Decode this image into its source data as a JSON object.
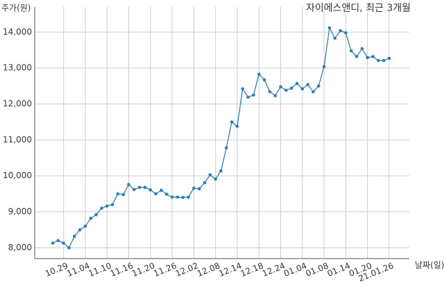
{
  "chart_data": {
    "type": "line",
    "title": "자이에스앤디, 최근 3개월",
    "y_label": "주가(원)",
    "x_label": "날짜(일)",
    "categories": [
      null,
      null,
      "10.29",
      null,
      null,
      null,
      "11.04",
      null,
      null,
      null,
      "11.10",
      null,
      null,
      null,
      "11.16",
      null,
      null,
      null,
      "11.20",
      null,
      null,
      null,
      "11.26",
      null,
      null,
      null,
      "12.02",
      null,
      null,
      null,
      "12.08",
      null,
      null,
      null,
      "12.14",
      null,
      null,
      null,
      "12.18",
      null,
      null,
      null,
      "12.24",
      null,
      null,
      null,
      "01.04",
      null,
      null,
      null,
      "01.08",
      null,
      null,
      null,
      "01.14",
      null,
      null,
      null,
      "01.20",
      null,
      null,
      null,
      "21.01.26"
    ],
    "series": [
      {
        "name": "주가",
        "color": "#2e7fb0",
        "values": [
          8130,
          8200,
          8130,
          8000,
          8320,
          8500,
          8600,
          8820,
          8920,
          9100,
          9160,
          9200,
          9500,
          9480,
          9760,
          9620,
          9680,
          9680,
          9610,
          9500,
          9600,
          9490,
          9410,
          9410,
          9400,
          9410,
          9660,
          9640,
          9810,
          10030,
          9910,
          10140,
          10780,
          11500,
          11380,
          12420,
          12190,
          12250,
          12830,
          12670,
          12340,
          12230,
          12480,
          12380,
          12440,
          12570,
          12420,
          12540,
          12340,
          12500,
          13040,
          14120,
          13830,
          14040,
          13980,
          13480,
          13320,
          13540,
          13290,
          13320,
          13210,
          13210,
          13270
        ]
      }
    ],
    "ylim": [
      7700,
      14700
    ],
    "yticks": [
      {
        "value": 8000,
        "label": "8,000"
      },
      {
        "value": 9000,
        "label": "9,000"
      },
      {
        "value": 10000,
        "label": "10,000"
      },
      {
        "value": 11000,
        "label": "11,000"
      },
      {
        "value": 12000,
        "label": "12,000"
      },
      {
        "value": 13000,
        "label": "13,000"
      },
      {
        "value": 14000,
        "label": "14,000"
      }
    ],
    "grid": true
  }
}
